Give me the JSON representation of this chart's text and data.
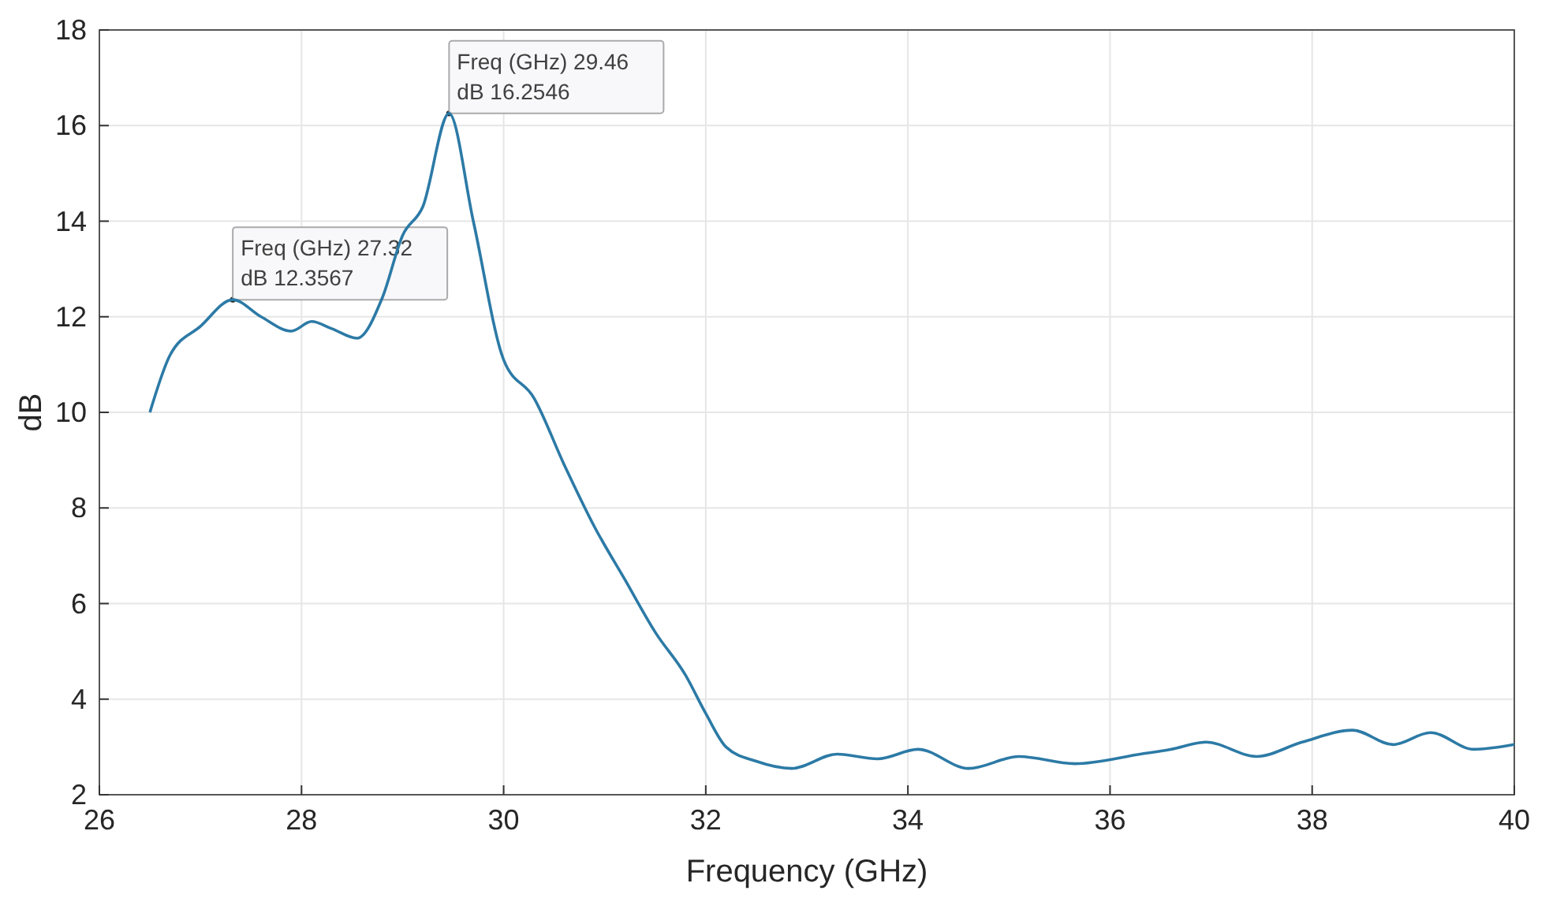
{
  "chart_data": {
    "type": "line",
    "xlabel": "Frequency (GHz)",
    "ylabel": "dB",
    "x": [
      26.5,
      26.7,
      27.0,
      27.32,
      27.6,
      27.9,
      28.1,
      28.3,
      28.55,
      28.8,
      29.0,
      29.2,
      29.46,
      29.7,
      30.0,
      30.3,
      30.6,
      30.9,
      31.2,
      31.5,
      31.8,
      32.0,
      32.2,
      32.5,
      32.85,
      33.3,
      33.7,
      34.1,
      34.6,
      35.1,
      35.65,
      36.3,
      36.6,
      36.95,
      37.45,
      37.9,
      38.4,
      38.8,
      39.17,
      39.6,
      40.0
    ],
    "series": [
      {
        "color": "#2c7aa6",
        "values": [
          10,
          11.2,
          11.8,
          12.3567,
          12.0,
          11.7,
          11.9,
          11.75,
          11.55,
          12.4,
          13.7,
          14.3,
          16.2546,
          14,
          11.1,
          10.3,
          8.9,
          7.6,
          6.5,
          5.4,
          4.5,
          3.7,
          3.0,
          2.7,
          2.55,
          2.85,
          2.75,
          2.95,
          2.55,
          2.8,
          2.65,
          2.85,
          2.95,
          3.1,
          2.8,
          3.1,
          3.35,
          3.05,
          3.3,
          2.95,
          3.05
        ]
      }
    ],
    "xlim": [
      26,
      40
    ],
    "xticks": [
      26,
      28,
      30,
      32,
      34,
      36,
      38,
      40
    ],
    "ylim": [
      2,
      18
    ],
    "yticks": [
      2,
      4,
      6,
      8,
      10,
      12,
      14,
      16,
      18
    ],
    "grid": true,
    "marker": "none",
    "line_style": "solid",
    "annotations": [
      {
        "text": "Freq (GHz) 27.32\ndB 12.3567",
        "x": 27.32,
        "y": 12.3567
      },
      {
        "text": "Freq (GHz) 29.46\ndB 16.2546",
        "x": 29.46,
        "y": 16.2546
      }
    ]
  }
}
